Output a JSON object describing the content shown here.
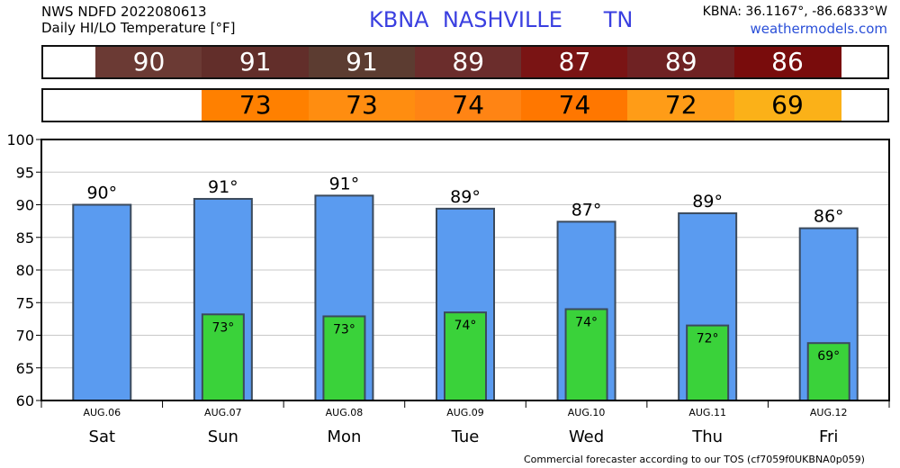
{
  "header": {
    "line1": "NWS NDFD 2022080613",
    "line2": "Daily HI/LO Temperature [°F]",
    "station": "KBNA",
    "city": "NASHVILLE",
    "state": "TN",
    "coords": "KBNA: 36.1167°, -86.6833°W",
    "site": "weathermodels.com"
  },
  "hi_strip": [
    {
      "value": "90",
      "color": "#6b3a34"
    },
    {
      "value": "91",
      "color": "#622e2a"
    },
    {
      "value": "91",
      "color": "#5c3c31"
    },
    {
      "value": "89",
      "color": "#6b2d2c"
    },
    {
      "value": "87",
      "color": "#7a1414"
    },
    {
      "value": "89",
      "color": "#6f2223"
    },
    {
      "value": "86",
      "color": "#790c0c"
    }
  ],
  "lo_strip": [
    {
      "value": "73",
      "color": "#ff8000"
    },
    {
      "value": "73",
      "color": "#ff8d10"
    },
    {
      "value": "74",
      "color": "#ff8414"
    },
    {
      "value": "74",
      "color": "#ff7700"
    },
    {
      "value": "72",
      "color": "#ff9c17"
    },
    {
      "value": "69",
      "color": "#fbb118"
    }
  ],
  "footer": "Commercial forecaster according to our TOS (cf7059f0UKBNA0p059)",
  "chart_data": {
    "type": "bar",
    "categories": [
      "Sat",
      "Sun",
      "Mon",
      "Tue",
      "Wed",
      "Thu",
      "Fri"
    ],
    "dates": [
      "AUG.06",
      "AUG.07",
      "AUG.08",
      "AUG.09",
      "AUG.10",
      "AUG.11",
      "AUG.12"
    ],
    "series": [
      {
        "values": [
          90,
          90.9,
          91.4,
          89.4,
          87.4,
          88.7,
          86.4
        ],
        "labels": [
          "90°",
          "91°",
          "91°",
          "89°",
          "87°",
          "89°",
          "86°"
        ],
        "color": "#5a9bf0"
      },
      {
        "values": [
          null,
          73.2,
          72.9,
          73.5,
          74.0,
          71.5,
          68.8
        ],
        "labels": [
          "",
          "73°",
          "73°",
          "74°",
          "74°",
          "72°",
          "69°"
        ],
        "color": "#3ad23a"
      }
    ],
    "yticks": [
      "100",
      "95",
      "90",
      "85",
      "80",
      "75",
      "70",
      "65",
      "60"
    ],
    "ylim": [
      60,
      100
    ],
    "grid": true
  }
}
